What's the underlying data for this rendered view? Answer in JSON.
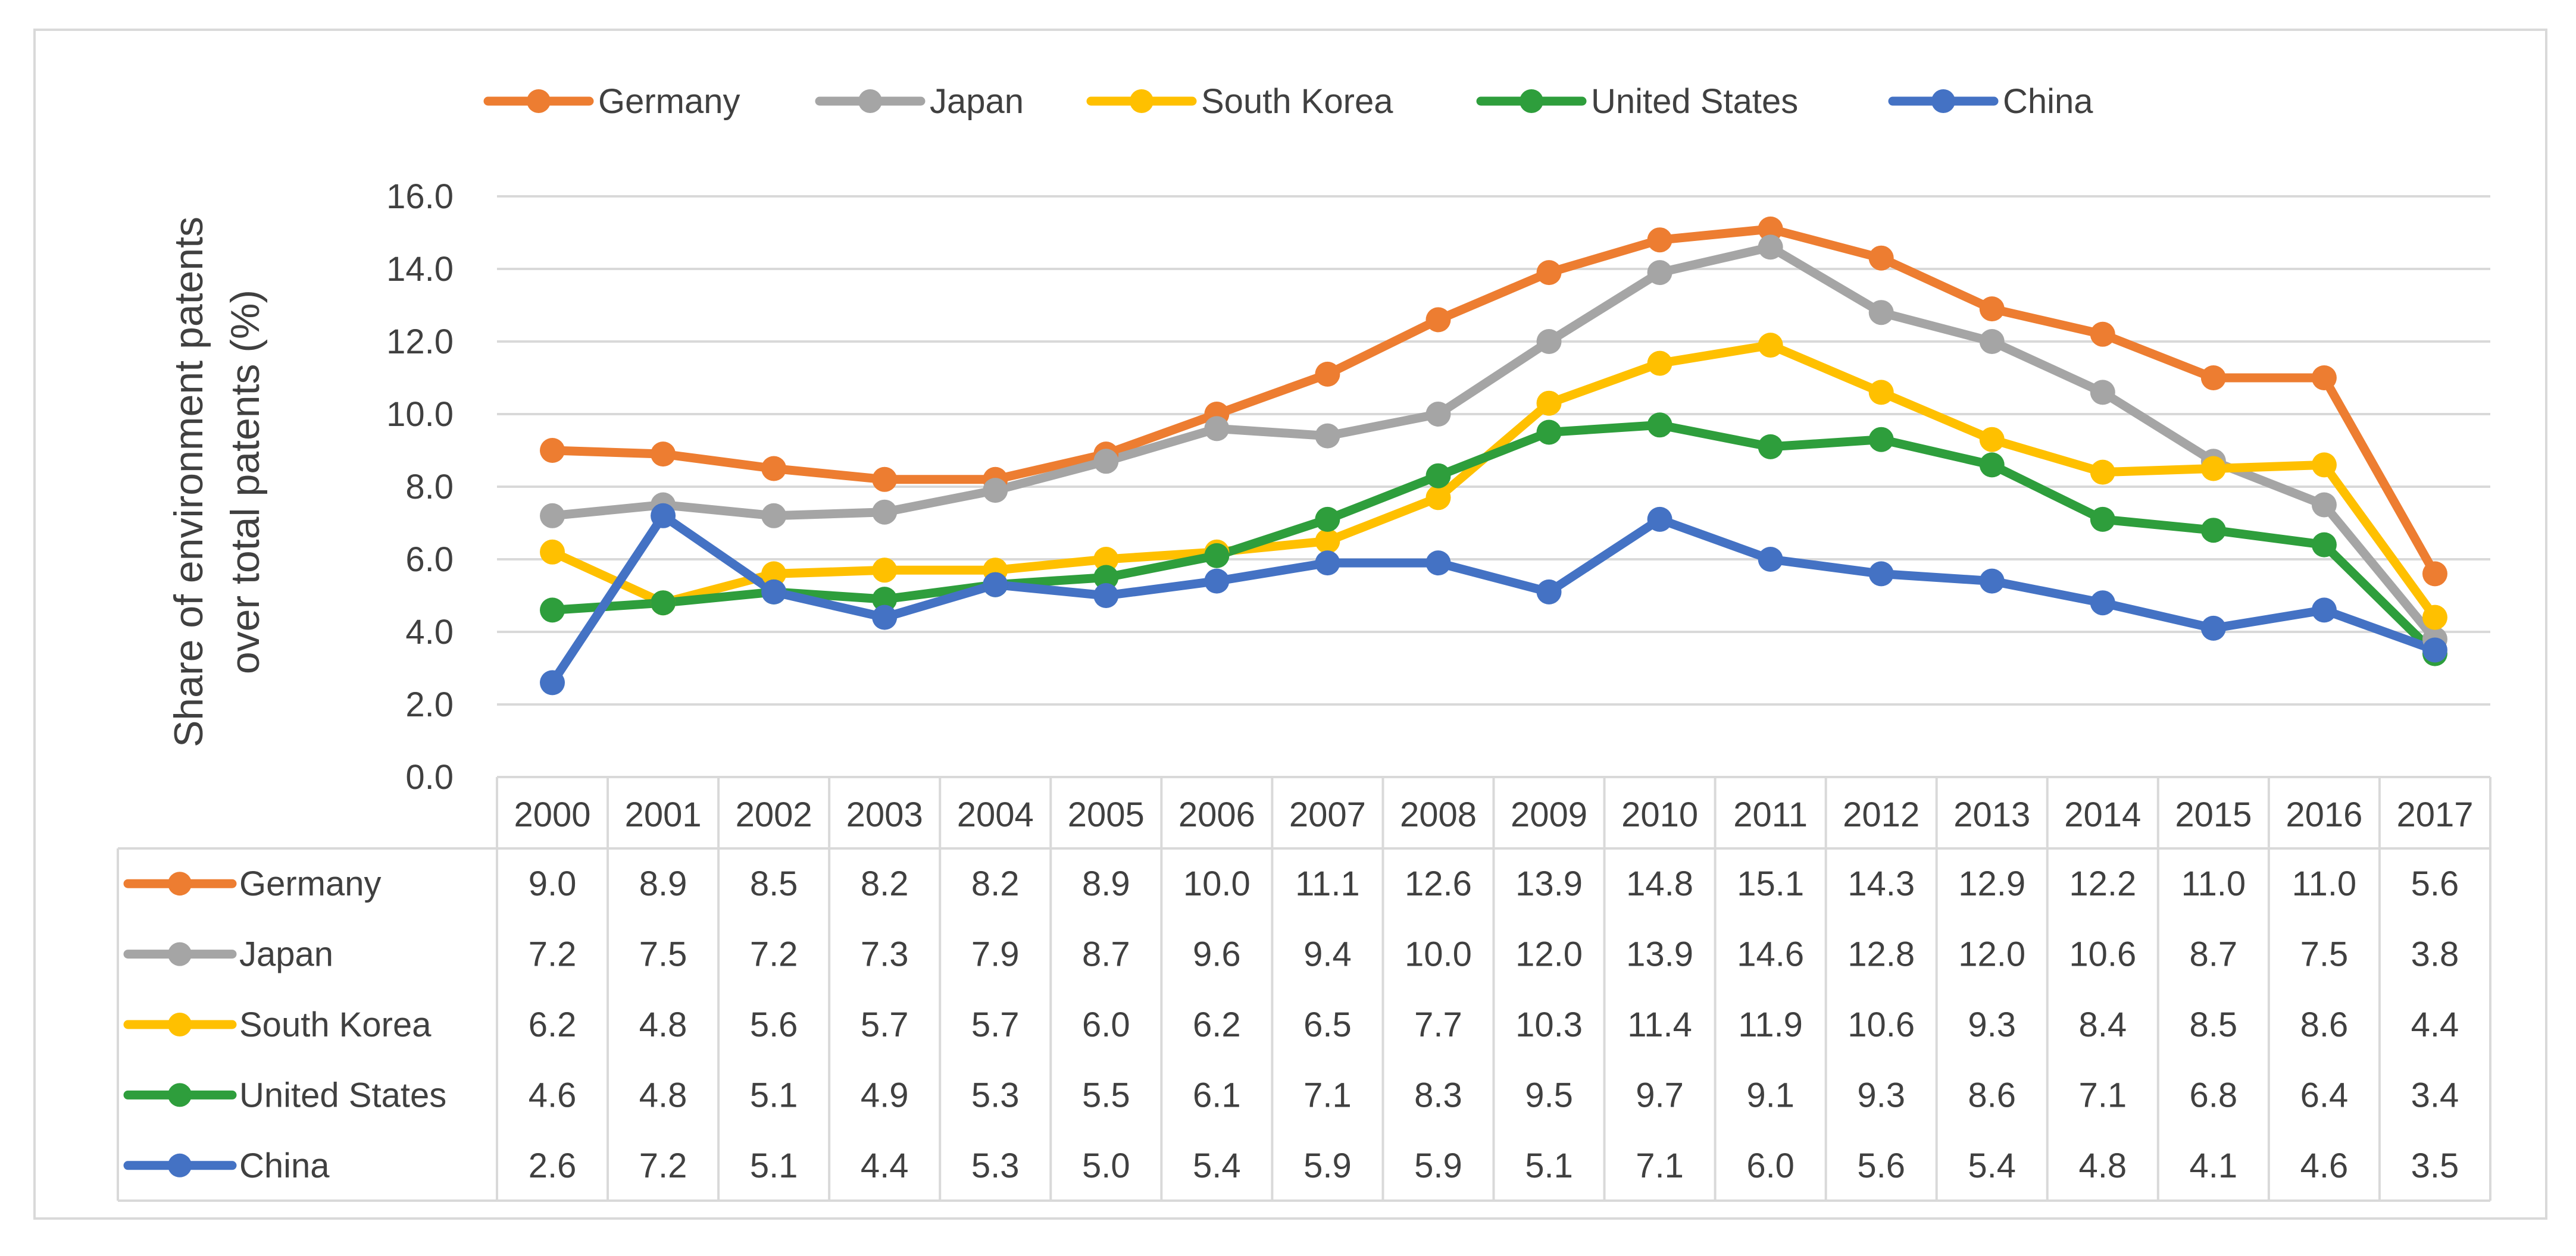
{
  "chart_data": {
    "type": "line",
    "title": "",
    "xlabel": "",
    "ylabel": "Share of environment patents over total patents (%)",
    "ylabel_lines": [
      "Share of environment patents",
      "over total patents (%)"
    ],
    "ylim": [
      0,
      16
    ],
    "y_ticks": [
      "0.0",
      "2.0",
      "4.0",
      "6.0",
      "8.0",
      "10.0",
      "12.0",
      "14.0",
      "16.0"
    ],
    "grid": true,
    "legend_position": "top",
    "data_table": true,
    "categories": [
      "2000",
      "2001",
      "2002",
      "2003",
      "2004",
      "2005",
      "2006",
      "2007",
      "2008",
      "2009",
      "2010",
      "2011",
      "2012",
      "2013",
      "2014",
      "2015",
      "2016",
      "2017"
    ],
    "series": [
      {
        "name": "Germany",
        "color": "#ED7D31",
        "values": [
          9.0,
          8.9,
          8.5,
          8.2,
          8.2,
          8.9,
          10.0,
          11.1,
          12.6,
          13.9,
          14.8,
          15.1,
          14.3,
          12.9,
          12.2,
          11.0,
          11.0,
          5.6
        ],
        "labels": [
          "9.0",
          "8.9",
          "8.5",
          "8.2",
          "8.2",
          "8.9",
          "10.0",
          "11.1",
          "12.6",
          "13.9",
          "14.8",
          "15.1",
          "14.3",
          "12.9",
          "12.2",
          "11.0",
          "11.0",
          "5.6"
        ]
      },
      {
        "name": "Japan",
        "color": "#A5A5A5",
        "values": [
          7.2,
          7.5,
          7.2,
          7.3,
          7.9,
          8.7,
          9.6,
          9.4,
          10.0,
          12.0,
          13.9,
          14.6,
          12.8,
          12.0,
          10.6,
          8.7,
          7.5,
          3.8
        ],
        "labels": [
          "7.2",
          "7.5",
          "7.2",
          "7.3",
          "7.9",
          "8.7",
          "9.6",
          "9.4",
          "10.0",
          "12.0",
          "13.9",
          "14.6",
          "12.8",
          "12.0",
          "10.6",
          "8.7",
          "7.5",
          "3.8"
        ]
      },
      {
        "name": "South Korea",
        "color": "#FFC000",
        "values": [
          6.2,
          4.8,
          5.6,
          5.7,
          5.7,
          6.0,
          6.2,
          6.5,
          7.7,
          10.3,
          11.4,
          11.9,
          10.6,
          9.3,
          8.4,
          8.5,
          8.6,
          4.4
        ],
        "labels": [
          "6.2",
          "4.8",
          "5.6",
          "5.7",
          "5.7",
          "6.0",
          "6.2",
          "6.5",
          "7.7",
          "10.3",
          "11.4",
          "11.9",
          "10.6",
          "9.3",
          "8.4",
          "8.5",
          "8.6",
          "4.4"
        ]
      },
      {
        "name": "United States",
        "color": "#2E9E3C",
        "values": [
          4.6,
          4.8,
          5.1,
          4.9,
          5.3,
          5.5,
          6.1,
          7.1,
          8.3,
          9.5,
          9.7,
          9.1,
          9.3,
          8.6,
          7.1,
          6.8,
          6.4,
          3.4
        ],
        "labels": [
          "4.6",
          "4.8",
          "5.1",
          "4.9",
          "5.3",
          "5.5",
          "6.1",
          "7.1",
          "8.3",
          "9.5",
          "9.7",
          "9.1",
          "9.3",
          "8.6",
          "7.1",
          "6.8",
          "6.4",
          "3.4"
        ]
      },
      {
        "name": "China",
        "color": "#4472C4",
        "values": [
          2.6,
          7.2,
          5.1,
          4.4,
          5.3,
          5.0,
          5.4,
          5.9,
          5.9,
          5.1,
          7.1,
          6.0,
          5.6,
          5.4,
          4.8,
          4.1,
          4.6,
          3.5
        ],
        "labels": [
          "2.6",
          "7.2",
          "5.1",
          "4.4",
          "5.3",
          "5.0",
          "5.4",
          "5.9",
          "5.9",
          "5.1",
          "7.1",
          "6.0",
          "5.6",
          "5.4",
          "4.8",
          "4.1",
          "4.6",
          "3.5"
        ]
      }
    ]
  }
}
